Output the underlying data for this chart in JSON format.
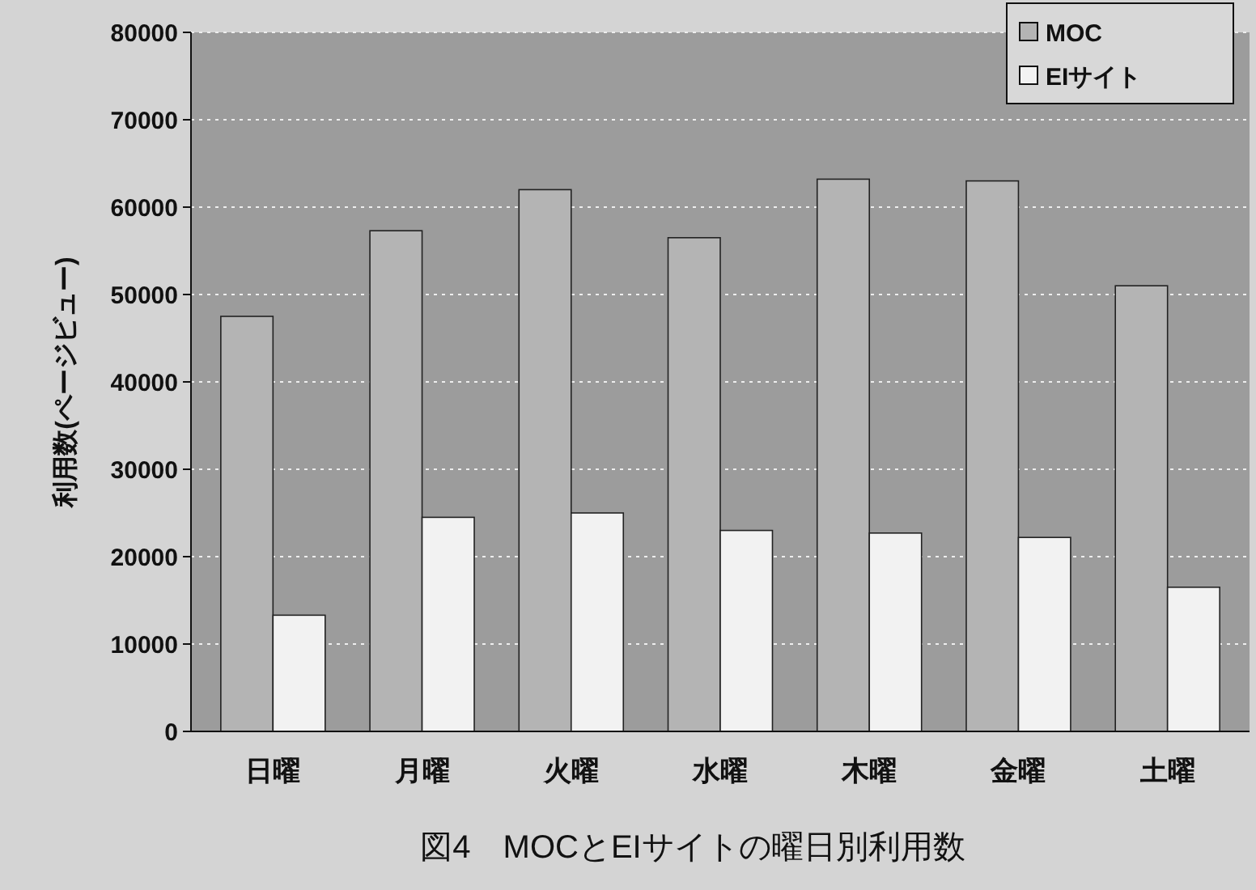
{
  "chart_data": {
    "type": "bar",
    "title": "図4　MOCとEIサイトの曜日別利用数",
    "ylabel": "利用数(ページビュー)",
    "categories": [
      "日曜",
      "月曜",
      "火曜",
      "水曜",
      "木曜",
      "金曜",
      "土曜"
    ],
    "series": [
      {
        "name": "MOC",
        "color": "#b4b4b4",
        "values": [
          47500,
          57300,
          62000,
          56500,
          63200,
          63000,
          51000
        ]
      },
      {
        "name": "EIサイト",
        "color": "#f2f2f2",
        "values": [
          13300,
          24500,
          25000,
          23000,
          22700,
          22200,
          16500
        ]
      }
    ],
    "ylim": [
      0,
      80000
    ],
    "yticks": [
      0,
      10000,
      20000,
      30000,
      40000,
      50000,
      60000,
      70000,
      80000
    ],
    "grid": "y",
    "legend": "top right"
  }
}
